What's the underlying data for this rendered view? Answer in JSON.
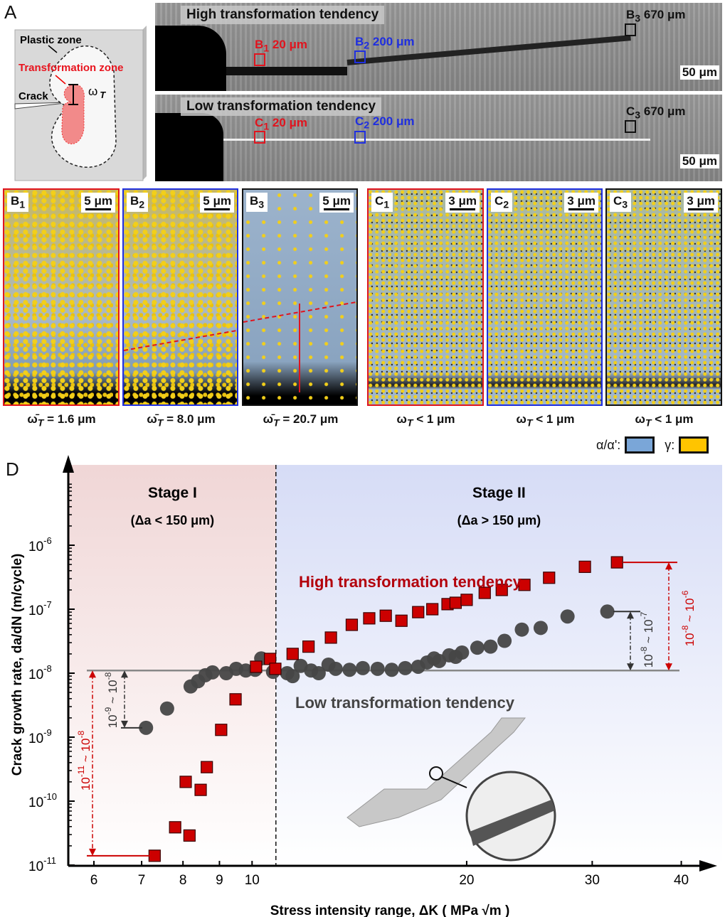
{
  "panel_labels": {
    "a": "A",
    "b": "B",
    "c": "C",
    "d": "D"
  },
  "panel_a": {
    "plastic_zone": "Plastic zone",
    "transformation_zone": "Transformation zone",
    "crack": "Crack",
    "omega": "ω",
    "omega_sub": "T"
  },
  "panel_b": {
    "title": "High transformation tendency",
    "markers": [
      {
        "label": "B",
        "sub": "1",
        "dist": "20 μm",
        "color": "#e0141e"
      },
      {
        "label": "B",
        "sub": "2",
        "dist": "200 μm",
        "color": "#1f2fe0"
      },
      {
        "label": "B",
        "sub": "3",
        "dist": "670 μm",
        "color": "#111111"
      }
    ],
    "scale": "50 μm"
  },
  "panel_c": {
    "title": "Low transformation tendency",
    "markers": [
      {
        "label": "C",
        "sub": "1",
        "dist": "20 μm",
        "color": "#e0141e"
      },
      {
        "label": "C",
        "sub": "2",
        "dist": "200 μm",
        "color": "#1f2fe0"
      },
      {
        "label": "C",
        "sub": "3",
        "dist": "670 μm",
        "color": "#111111"
      }
    ],
    "scale": "50 μm"
  },
  "micrographs": [
    {
      "label": "B",
      "sub": "1",
      "scale": "5 μm",
      "caption": "ω̄ T = 1.6 μm",
      "omega": "ω̄",
      "omega_sub": "T",
      "relation": "= 1.6 μm",
      "border": "#e0141e"
    },
    {
      "label": "B",
      "sub": "2",
      "scale": "5 μm",
      "caption": "ω̄ T = 8.0 μm",
      "omega": "ω̄",
      "omega_sub": "T",
      "relation": "= 8.0 μm",
      "border": "#1f2fe0"
    },
    {
      "label": "B",
      "sub": "3",
      "scale": "5 μm",
      "caption": "ω̄ T = 20.7 μm",
      "omega": "ω̄",
      "omega_sub": "T",
      "relation": "= 20.7 μm",
      "border": "#111111"
    },
    {
      "label": "C",
      "sub": "1",
      "scale": "3 μm",
      "omega": "ω",
      "omega_sub": "T",
      "relation": "< 1 μm",
      "border": "#e0141e"
    },
    {
      "label": "C",
      "sub": "2",
      "scale": "3 μm",
      "omega": "ω",
      "omega_sub": "T",
      "relation": "< 1 μm",
      "border": "#1f2fe0"
    },
    {
      "label": "C",
      "sub": "3",
      "scale": "3 μm",
      "omega": "ω",
      "omega_sub": "T",
      "relation": "< 1 μm",
      "border": "#111111"
    }
  ],
  "phase_legend": [
    {
      "label": "α/α':",
      "color": "#7aa6d8"
    },
    {
      "label": "γ:",
      "color": "#ffc400"
    }
  ],
  "chart_data": {
    "type": "scatter",
    "xlabel": "Stress intensity range, ΔK ( MPa √m )",
    "ylabel": "Crack growth rate, da/dN (m/cycle)",
    "x_scale": "log",
    "y_scale": "log",
    "xlim": [
      5.5,
      42
    ],
    "ylim": [
      1e-11,
      2e-06
    ],
    "x_ticks": [
      6,
      7,
      8,
      9,
      10,
      20,
      30,
      40
    ],
    "x_tick_labels": [
      "6",
      "7",
      "8",
      "9",
      "10",
      "20",
      "30",
      "40"
    ],
    "y_ticks": [
      1e-11,
      1e-10,
      1e-09,
      1e-08,
      1e-07,
      1e-06
    ],
    "y_tick_labels": [
      {
        "base": "10",
        "exp": "-11"
      },
      {
        "base": "10",
        "exp": "-10"
      },
      {
        "base": "10",
        "exp": "-9"
      },
      {
        "base": "10",
        "exp": "-8"
      },
      {
        "base": "10",
        "exp": "-7"
      },
      {
        "base": "10",
        "exp": "-6"
      }
    ],
    "grid": false,
    "stage_boundary_x": 10.8,
    "stages": [
      {
        "title": "Stage I",
        "condition": "(Δa < 150 μm)",
        "color": "#f0d6d6"
      },
      {
        "title": "Stage II",
        "condition": "(Δa > 150 μm)",
        "color": "#d6dcf6"
      }
    ],
    "series": [
      {
        "name": "High transformation tendency",
        "marker": "square",
        "color": "#cc0000",
        "x": [
          7.3,
          7.8,
          8.17,
          8.07,
          8.47,
          8.64,
          9.05,
          9.48,
          10.13,
          10.6,
          10.78,
          11.4,
          12.0,
          12.9,
          13.8,
          14.6,
          15.4,
          16.2,
          17.1,
          17.9,
          18.8,
          19.3,
          20.0,
          21.2,
          22.4,
          24.1,
          26.1,
          29.3,
          32.5
        ],
        "y": [
          1.4e-11,
          3.9e-11,
          2.9e-11,
          2e-10,
          1.5e-10,
          3.4e-10,
          1.3e-09,
          3.9e-09,
          1.26e-08,
          1.67e-08,
          1.17e-08,
          2e-08,
          2.6e-08,
          3.6e-08,
          5.7e-08,
          7.2e-08,
          7.9e-08,
          6.6e-08,
          9e-08,
          1e-07,
          1.2e-07,
          1.26e-07,
          1.4e-07,
          1.8e-07,
          2e-07,
          2.4e-07,
          3.1e-07,
          4.6e-07,
          5.4e-07
        ]
      },
      {
        "name": "Low transformation tendency",
        "marker": "circle",
        "color": "#464646",
        "x": [
          7.1,
          7.6,
          8.2,
          8.4,
          8.6,
          8.8,
          9.2,
          9.5,
          9.8,
          10.1,
          10.3,
          10.7,
          11.2,
          11.4,
          11.7,
          12.1,
          12.4,
          12.8,
          13.1,
          13.7,
          14.3,
          15.0,
          15.7,
          16.4,
          17.1,
          17.6,
          18.0,
          18.3,
          18.9,
          19.3,
          19.7,
          20.7,
          21.6,
          22.6,
          23.9,
          25.4,
          27.7,
          31.5
        ],
        "y": [
          1.4e-09,
          2.8e-09,
          6.2e-09,
          7.5e-09,
          9.3e-09,
          1.03e-08,
          1e-08,
          1.17e-08,
          1.1e-08,
          1.13e-08,
          1.7e-08,
          1.05e-08,
          1e-08,
          9e-09,
          1.3e-08,
          1.1e-08,
          1e-08,
          1.36e-08,
          1.17e-08,
          1.13e-08,
          1.2e-08,
          1.17e-08,
          1.13e-08,
          1.2e-08,
          1.26e-08,
          1.47e-08,
          1.7e-08,
          1.55e-08,
          1.9e-08,
          1.8e-08,
          2.1e-08,
          2.5e-08,
          2.6e-08,
          3.2e-08,
          4.8e-08,
          5.1e-08,
          7.7e-08,
          9.2e-08
        ]
      }
    ],
    "reference_line_y": 1.1e-08,
    "annotations": [
      {
        "text": "10-11 ~ 10-8",
        "base1": "10",
        "exp1": "-11",
        "base2": "10",
        "exp2": "-8",
        "color": "#cc0000"
      },
      {
        "text": "10-9 ~ 10-8",
        "base1": "10",
        "exp1": "-9",
        "base2": "10",
        "exp2": "-8",
        "color": "#333333"
      },
      {
        "text": "10-8 ~ 10-7",
        "base1": "10",
        "exp1": "-8",
        "base2": "10",
        "exp2": "-7",
        "color": "#333333"
      },
      {
        "text": "10-8 ~ 10-6",
        "base1": "10",
        "exp1": "-8",
        "base2": "10",
        "exp2": "-6",
        "color": "#cc0000"
      }
    ]
  }
}
